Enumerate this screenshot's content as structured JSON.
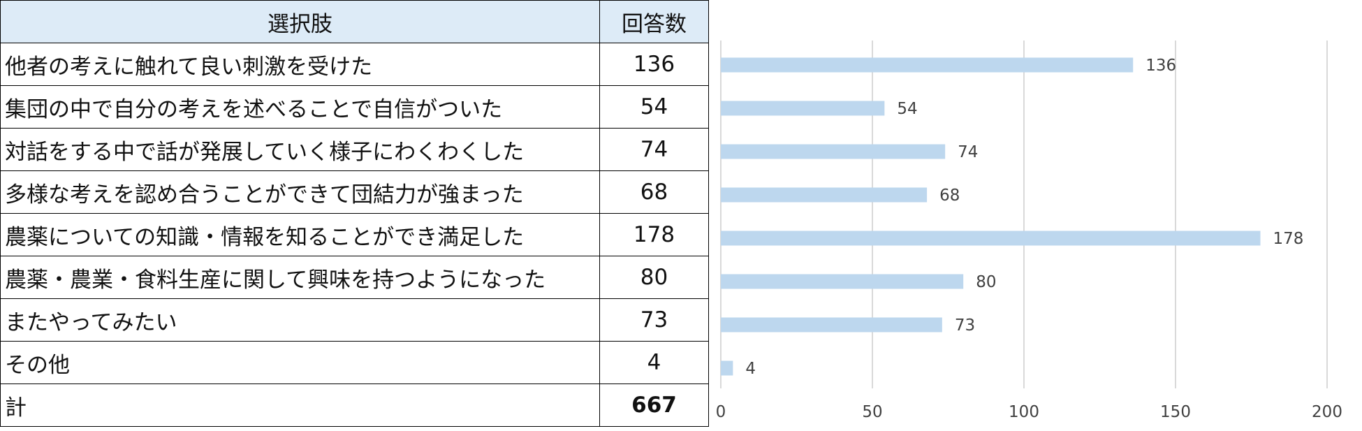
{
  "table": {
    "header_option": "選択肢",
    "header_count": "回答数",
    "rows": [
      {
        "label": "他者の考えに触れて良い刺激を受けた",
        "count": "136"
      },
      {
        "label": "集団の中で自分の考えを述べることで自信がついた",
        "count": "54"
      },
      {
        "label": "対話をする中で話が発展していく様子にわくわくした",
        "count": "74"
      },
      {
        "label": "多様な考えを認め合うことができて団結力が強まった",
        "count": "68"
      },
      {
        "label": "農薬についての知識・情報を知ることができ満足した",
        "count": "178"
      },
      {
        "label": "農薬・農業・食料生産に関して興味を持つようになった",
        "count": "80"
      },
      {
        "label": "またやってみたい",
        "count": "73"
      },
      {
        "label": "その他",
        "count": "4"
      }
    ],
    "total_label": "計",
    "total_count": "667"
  },
  "chart_data": {
    "type": "bar",
    "orientation": "horizontal",
    "categories": [
      "他者の考えに触れて良い刺激を受けた",
      "集団の中で自分の考えを述べることで自信がついた",
      "対話をする中で話が発展していく様子にわくわくした",
      "多様な考えを認め合うことができて団結力が強まった",
      "農薬についての知識・情報を知ることができ満足した",
      "農薬・農業・食料生産に関して興味を持つようになった",
      "またやってみたい",
      "その他"
    ],
    "values": [
      136,
      54,
      74,
      68,
      178,
      80,
      73,
      4
    ],
    "xlim": [
      0,
      200
    ],
    "xticks": [
      0,
      50,
      100,
      150,
      200
    ],
    "grid": "vertical",
    "data_labels": true,
    "bar_color": "#bdd7ee",
    "grid_color": "#d9d9d9",
    "title": "",
    "xlabel": "",
    "ylabel": ""
  }
}
